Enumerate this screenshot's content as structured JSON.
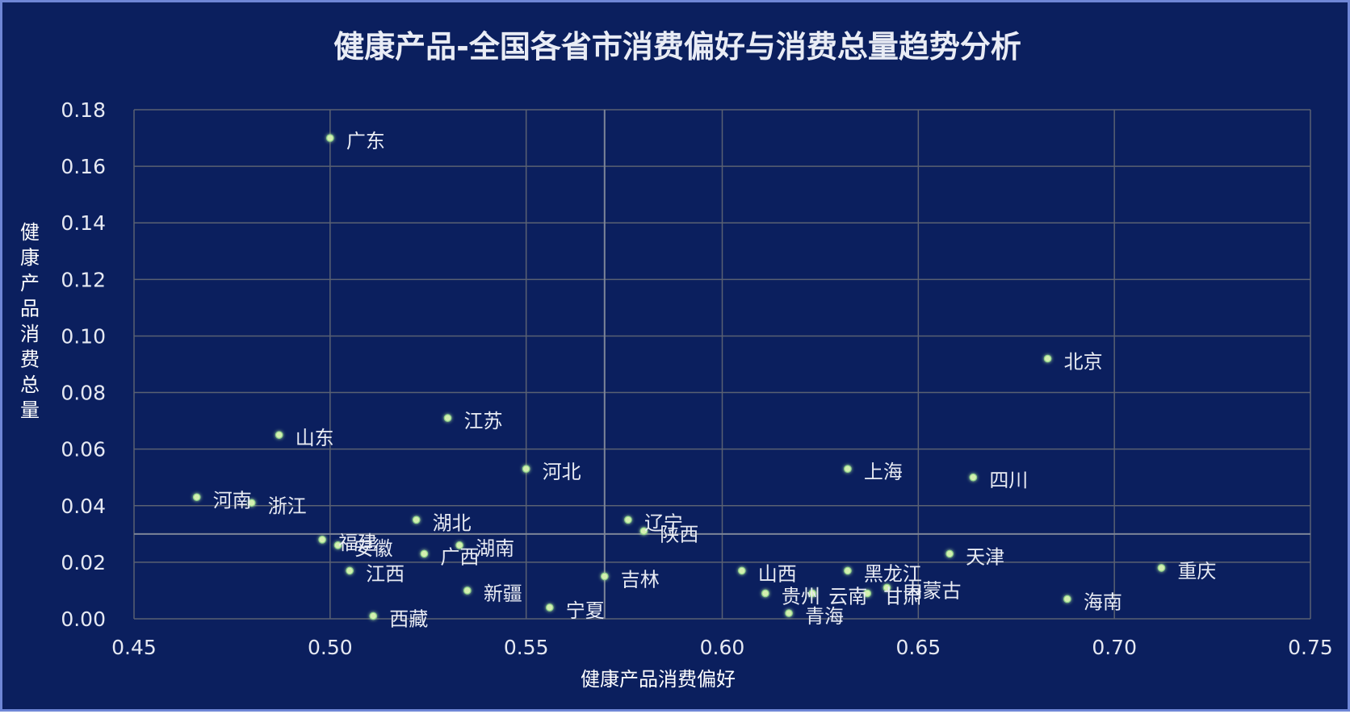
{
  "chart_data": {
    "type": "scatter",
    "title": "健康产品-全国各省市消费偏好与消费总量趋势分析",
    "xlabel": "健康产品消费偏好",
    "ylabel": "健康产品消费总量",
    "xlim": [
      0.45,
      0.75
    ],
    "ylim": [
      0,
      0.18
    ],
    "x_ticks": [
      "0.45",
      "0.50",
      "0.55",
      "0.60",
      "0.65",
      "0.70",
      "0.75"
    ],
    "y_ticks": [
      "0.00",
      "0.02",
      "0.04",
      "0.06",
      "0.08",
      "0.10",
      "0.12",
      "0.14",
      "0.16",
      "0.18"
    ],
    "x_tick_values": [
      0.45,
      0.5,
      0.55,
      0.6,
      0.65,
      0.7,
      0.75
    ],
    "y_tick_values": [
      0,
      0.02,
      0.04,
      0.06,
      0.08,
      0.1,
      0.12,
      0.14,
      0.16,
      0.18
    ],
    "reference_lines": {
      "x": 0.57,
      "y": 0.03
    },
    "grid": true,
    "points": [
      {
        "name": "广东",
        "x": 0.5,
        "y": 0.17
      },
      {
        "name": "北京",
        "x": 0.683,
        "y": 0.092
      },
      {
        "name": "江苏",
        "x": 0.53,
        "y": 0.071
      },
      {
        "name": "山东",
        "x": 0.487,
        "y": 0.065
      },
      {
        "name": "河北",
        "x": 0.55,
        "y": 0.053
      },
      {
        "name": "上海",
        "x": 0.632,
        "y": 0.053
      },
      {
        "name": "四川",
        "x": 0.664,
        "y": 0.05
      },
      {
        "name": "河南",
        "x": 0.466,
        "y": 0.043
      },
      {
        "name": "浙江",
        "x": 0.48,
        "y": 0.041
      },
      {
        "name": "湖北",
        "x": 0.522,
        "y": 0.035
      },
      {
        "name": "辽宁",
        "x": 0.576,
        "y": 0.035
      },
      {
        "name": "陕西",
        "x": 0.58,
        "y": 0.031
      },
      {
        "name": "福建",
        "x": 0.498,
        "y": 0.028
      },
      {
        "name": "安徽",
        "x": 0.502,
        "y": 0.026
      },
      {
        "name": "湖南",
        "x": 0.533,
        "y": 0.026
      },
      {
        "name": "广西",
        "x": 0.524,
        "y": 0.023
      },
      {
        "name": "天津",
        "x": 0.658,
        "y": 0.023
      },
      {
        "name": "重庆",
        "x": 0.712,
        "y": 0.018
      },
      {
        "name": "江西",
        "x": 0.505,
        "y": 0.017
      },
      {
        "name": "山西",
        "x": 0.605,
        "y": 0.017
      },
      {
        "name": "黑龙江",
        "x": 0.632,
        "y": 0.017
      },
      {
        "name": "吉林",
        "x": 0.57,
        "y": 0.015
      },
      {
        "name": "内蒙古",
        "x": 0.642,
        "y": 0.011
      },
      {
        "name": "云南",
        "x": 0.623,
        "y": 0.009
      },
      {
        "name": "甘肃",
        "x": 0.637,
        "y": 0.009
      },
      {
        "name": "新疆",
        "x": 0.535,
        "y": 0.01
      },
      {
        "name": "贵州",
        "x": 0.611,
        "y": 0.009
      },
      {
        "name": "海南",
        "x": 0.688,
        "y": 0.007
      },
      {
        "name": "宁夏",
        "x": 0.556,
        "y": 0.004
      },
      {
        "name": "青海",
        "x": 0.617,
        "y": 0.002
      },
      {
        "name": "西藏",
        "x": 0.511,
        "y": 0.001
      }
    ],
    "colors": {
      "background": "#0b1f5e",
      "grid": "#5a6172",
      "marker": "#d4f0b0",
      "marker_glow": "#8fd48a"
    }
  }
}
